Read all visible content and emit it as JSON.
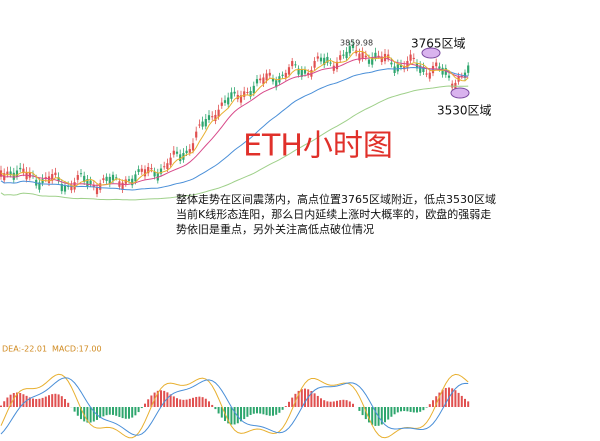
{
  "title": "ETH小时图",
  "high_label": "3859.98",
  "zones": [
    "3765区域",
    "3530区域"
  ],
  "commentary": [
    "整体走势在区间震荡内，高点位置3765区域附近，低点3530区域",
    "当前K线形态连阳，那么日内延续上涨时大概率的，欧盘的强弱走",
    "势依旧是重点，另外关注高低点破位情况"
  ],
  "indicator": {
    "dea": "DEA:-22.01",
    "macd": "MACD:17.00"
  }
}
